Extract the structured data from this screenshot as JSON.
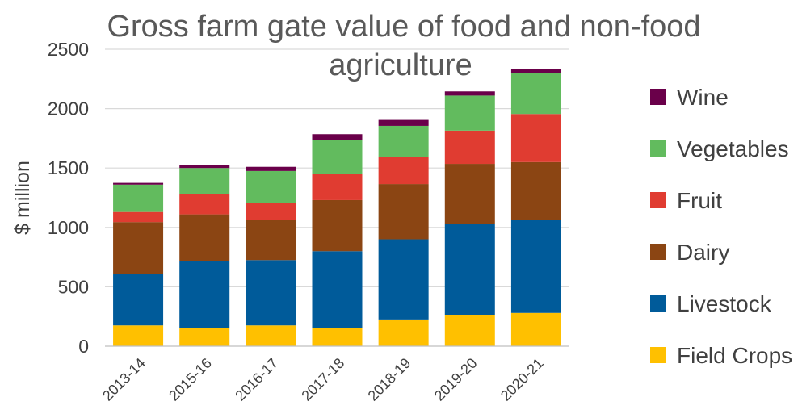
{
  "chart_data": {
    "type": "bar",
    "stacked": true,
    "title_lines": [
      "Gross farm gate value of food and non-food",
      "agriculture"
    ],
    "ylabel": "$ million",
    "xlabel": "",
    "ylim": [
      0,
      2500
    ],
    "yticks": [
      0,
      500,
      1000,
      1500,
      2000,
      2500
    ],
    "grid": true,
    "legend_position": "right",
    "categories": [
      "2013-14",
      "2015-16",
      "2016-17",
      "2017-18",
      "2018-19",
      "2019-20",
      "2020-21"
    ],
    "series": [
      {
        "name": "Field Crops",
        "color": "#FFC000",
        "values": [
          175,
          155,
          175,
          155,
          225,
          265,
          280
        ]
      },
      {
        "name": "Livestock",
        "color": "#005B9A",
        "values": [
          430,
          560,
          550,
          645,
          675,
          765,
          780
        ]
      },
      {
        "name": "Dairy",
        "color": "#8B4513",
        "values": [
          440,
          395,
          335,
          430,
          465,
          505,
          490
        ]
      },
      {
        "name": "Fruit",
        "color": "#E03C31",
        "values": [
          85,
          170,
          145,
          220,
          230,
          280,
          405
        ]
      },
      {
        "name": "Vegetables",
        "color": "#62BB5E",
        "values": [
          230,
          220,
          270,
          285,
          260,
          295,
          345
        ]
      },
      {
        "name": "Wine",
        "color": "#6A004A",
        "values": [
          15,
          25,
          35,
          50,
          50,
          35,
          35
        ]
      }
    ]
  }
}
